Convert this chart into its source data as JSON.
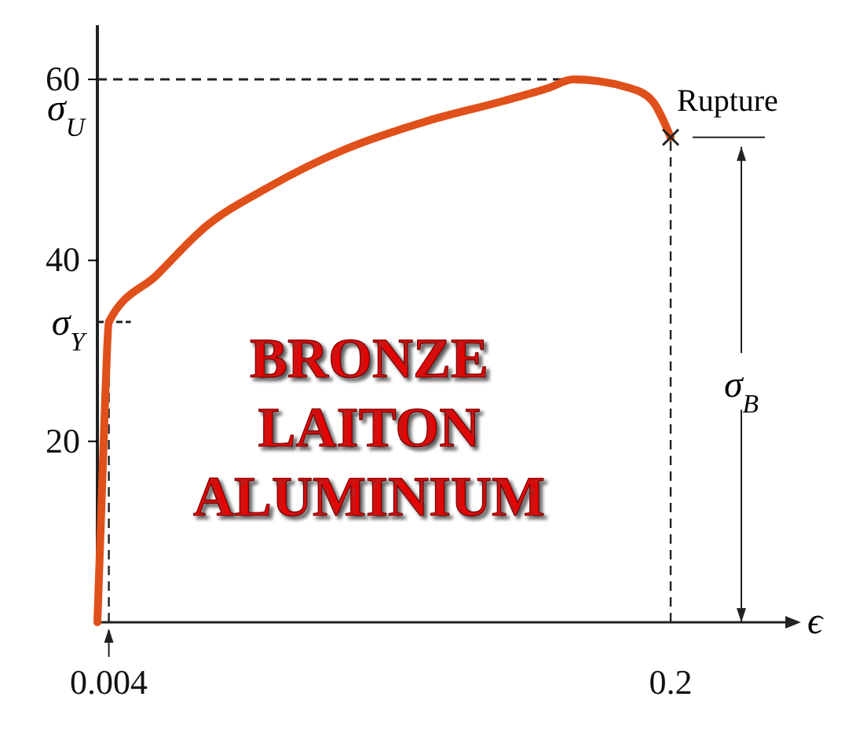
{
  "chart_data": {
    "type": "line",
    "xlabel": "ϵ",
    "x": [
      0,
      0.0028,
      0.004,
      0.0208,
      0.0373,
      0.0592,
      0.0866,
      0.114,
      0.1414,
      0.1578,
      0.166,
      0.1852,
      0.1934,
      0.2
    ],
    "series": [
      {
        "color": "#e0501a",
        "values": [
          0,
          25.4,
          33.2,
          38.4,
          43.6,
          48,
          52.3,
          55.3,
          57.6,
          59.1,
          60,
          59.1,
          57.7,
          53.6
        ]
      }
    ],
    "xlim": [
      0,
      0.24
    ],
    "xticks": [
      0.004,
      0.2
    ],
    "ylim": [
      0,
      66
    ],
    "yticks": [
      20,
      40,
      60
    ],
    "grid": false,
    "line_style": "solid",
    "ref_lines": [
      {
        "axis": "y",
        "value": 60,
        "label": "σ$_{U}$",
        "line_style": "dashed"
      },
      {
        "axis": "y",
        "value": 33.2,
        "label": "σ$_{Y}$",
        "line_style": "dashed"
      },
      {
        "axis": "x",
        "value": 0.004,
        "line_style": "dashed"
      },
      {
        "axis": "x",
        "value": 0.2,
        "line_style": "dashed"
      }
    ],
    "annotations": [
      {
        "text": "Rupture",
        "x": 0.2,
        "y": 53.6
      },
      "σ$_{B}$",
      "BRONZE\nLAITON\nALUMINIUM"
    ]
  }
}
